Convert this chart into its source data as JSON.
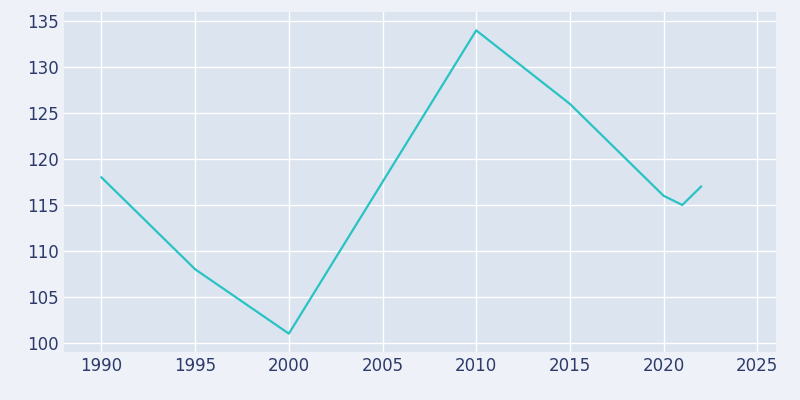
{
  "years": [
    1990,
    1995,
    2000,
    2010,
    2015,
    2020,
    2021,
    2022
  ],
  "population": [
    118,
    108,
    101,
    134,
    126,
    116,
    115,
    117
  ],
  "line_color": "#29c3c3",
  "background_color": "#eef1f7",
  "plot_background_color": "#dce4f0",
  "grid_color": "#ffffff",
  "tick_color": "#2d3a6a",
  "xlim": [
    1988,
    2026
  ],
  "ylim": [
    99,
    136
  ],
  "xticks": [
    1990,
    1995,
    2000,
    2005,
    2010,
    2015,
    2020,
    2025
  ],
  "yticks": [
    100,
    105,
    110,
    115,
    120,
    125,
    130,
    135
  ],
  "linewidth": 1.6,
  "tick_fontsize": 12
}
